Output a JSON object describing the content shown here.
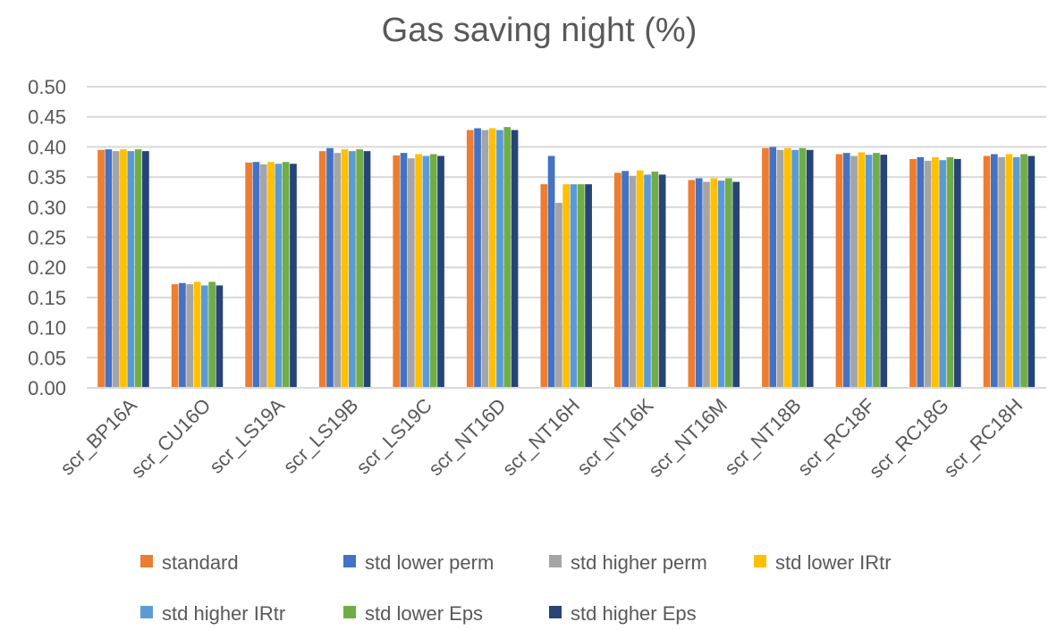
{
  "chart_data": {
    "type": "bar",
    "title": "Gas saving night (%)",
    "xlabel": "",
    "ylabel": "",
    "ylim": [
      0,
      0.5
    ],
    "yticks": [
      "0.00",
      "0.05",
      "0.10",
      "0.15",
      "0.20",
      "0.25",
      "0.30",
      "0.35",
      "0.40",
      "0.45",
      "0.50"
    ],
    "grid": true,
    "legend_position": "bottom",
    "categories": [
      "scr_BP16A",
      "scr_CU16O",
      "scr_LS19A",
      "scr_LS19B",
      "scr_LS19C",
      "scr_NT16D",
      "scr_NT16H",
      "scr_NT16K",
      "scr_NT16M",
      "scr_NT18B",
      "scr_RC18F",
      "scr_RC18G",
      "scr_RC18H"
    ],
    "series": [
      {
        "name": "standard",
        "color": "#ED7D31",
        "values": [
          0.395,
          0.172,
          0.374,
          0.393,
          0.386,
          0.428,
          0.338,
          0.357,
          0.345,
          0.398,
          0.388,
          0.38,
          0.385
        ]
      },
      {
        "name": "std lower perm",
        "color": "#4472C4",
        "values": [
          0.396,
          0.174,
          0.375,
          0.398,
          0.39,
          0.431,
          0.385,
          0.36,
          0.348,
          0.4,
          0.39,
          0.383,
          0.388
        ]
      },
      {
        "name": "std higher perm",
        "color": "#A5A5A5",
        "values": [
          0.393,
          0.172,
          0.371,
          0.39,
          0.381,
          0.428,
          0.307,
          0.352,
          0.342,
          0.395,
          0.385,
          0.377,
          0.383
        ]
      },
      {
        "name": "std lower IRtr",
        "color": "#FFC000",
        "values": [
          0.396,
          0.176,
          0.375,
          0.396,
          0.388,
          0.431,
          0.338,
          0.361,
          0.348,
          0.398,
          0.391,
          0.383,
          0.388
        ]
      },
      {
        "name": "std higher IRtr",
        "color": "#5B9BD5",
        "values": [
          0.393,
          0.17,
          0.372,
          0.393,
          0.385,
          0.428,
          0.338,
          0.354,
          0.344,
          0.395,
          0.387,
          0.378,
          0.383
        ]
      },
      {
        "name": "std lower Eps",
        "color": "#70AD47",
        "values": [
          0.396,
          0.176,
          0.375,
          0.396,
          0.388,
          0.433,
          0.338,
          0.359,
          0.348,
          0.398,
          0.39,
          0.383,
          0.388
        ]
      },
      {
        "name": "std higher Eps",
        "color": "#264478",
        "values": [
          0.393,
          0.17,
          0.372,
          0.393,
          0.385,
          0.428,
          0.338,
          0.354,
          0.342,
          0.395,
          0.387,
          0.38,
          0.385
        ]
      }
    ]
  }
}
